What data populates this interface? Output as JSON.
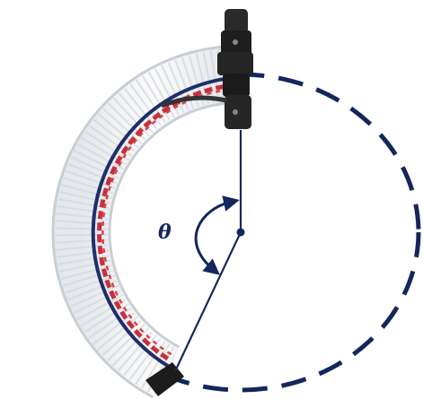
{
  "figure": {
    "angle_label": "θ"
  },
  "colors": {
    "circle_navy": "#14275c",
    "tube_white": "#f3f4f5",
    "tube_shadow": "#d6dadf",
    "fiber_red": "#c8303c",
    "connector_black": "#202020"
  }
}
